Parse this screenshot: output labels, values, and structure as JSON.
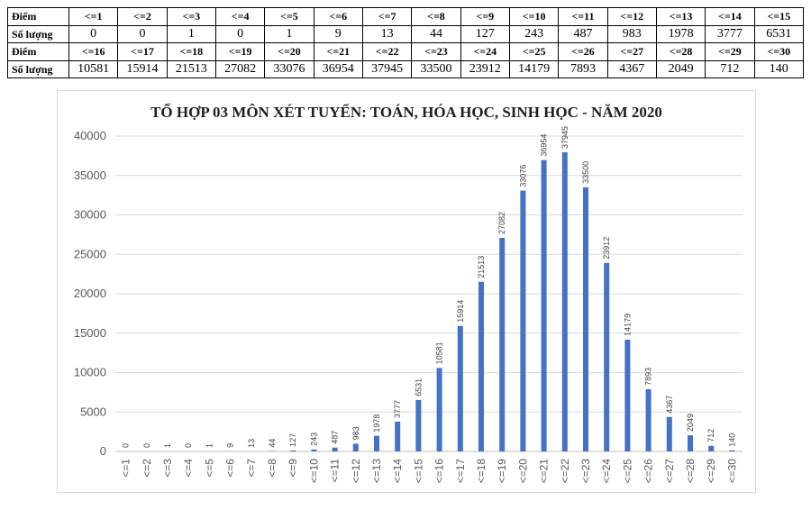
{
  "table": {
    "header_label": "Điểm",
    "row_label": "Số lượng",
    "groups": [
      {
        "categories": [
          "<=1",
          "<=2",
          "<=3",
          "<=4",
          "<=5",
          "<=6",
          "<=7",
          "<=8",
          "<=9",
          "<=10",
          "<=11",
          "<=12",
          "<=13",
          "<=14",
          "<=15"
        ],
        "values": [
          "0",
          "0",
          "1",
          "0",
          "1",
          "9",
          "13",
          "44",
          "127",
          "243",
          "487",
          "983",
          "1978",
          "3777",
          "6531"
        ]
      },
      {
        "categories": [
          "<=16",
          "<=17",
          "<=18",
          "<=19",
          "<=20",
          "<=21",
          "<=22",
          "<=23",
          "<=24",
          "<=25",
          "<=26",
          "<=27",
          "<=28",
          "<=29",
          "<=30"
        ],
        "values": [
          "10581",
          "15914",
          "21513",
          "27082",
          "33076",
          "36954",
          "37945",
          "33500",
          "23912",
          "14179",
          "7893",
          "4367",
          "2049",
          "712",
          "140"
        ]
      }
    ]
  },
  "chart_data": {
    "type": "bar",
    "title": "TỔ HỢP 03 MÔN XÉT TUYỂN: TOÁN, HÓA HỌC, SINH HỌC - NĂM 2020",
    "xlabel": "",
    "ylabel": "",
    "categories": [
      "<=1",
      "<=2",
      "<=3",
      "<=4",
      "<=5",
      "<=6",
      "<=7",
      "<=8",
      "<=9",
      "<=10",
      "<=11",
      "<=12",
      "<=13",
      "<=14",
      "<=15",
      "<=16",
      "<=17",
      "<=18",
      "<=19",
      "<=20",
      "<=21",
      "<=22",
      "<=23",
      "<=24",
      "<=25",
      "<=26",
      "<=27",
      "<=28",
      "<=29",
      "<=30"
    ],
    "values": [
      0,
      0,
      1,
      0,
      1,
      9,
      13,
      44,
      127,
      243,
      487,
      983,
      1978,
      3777,
      6531,
      10581,
      15914,
      21513,
      27082,
      33076,
      36954,
      37945,
      33500,
      23912,
      14179,
      7893,
      4367,
      2049,
      712,
      140
    ],
    "ylim": [
      0,
      40000
    ],
    "yticks": [
      0,
      5000,
      10000,
      15000,
      20000,
      25000,
      30000,
      35000,
      40000
    ],
    "grid": true,
    "bar_color": "#4472c4",
    "legend": "none"
  }
}
